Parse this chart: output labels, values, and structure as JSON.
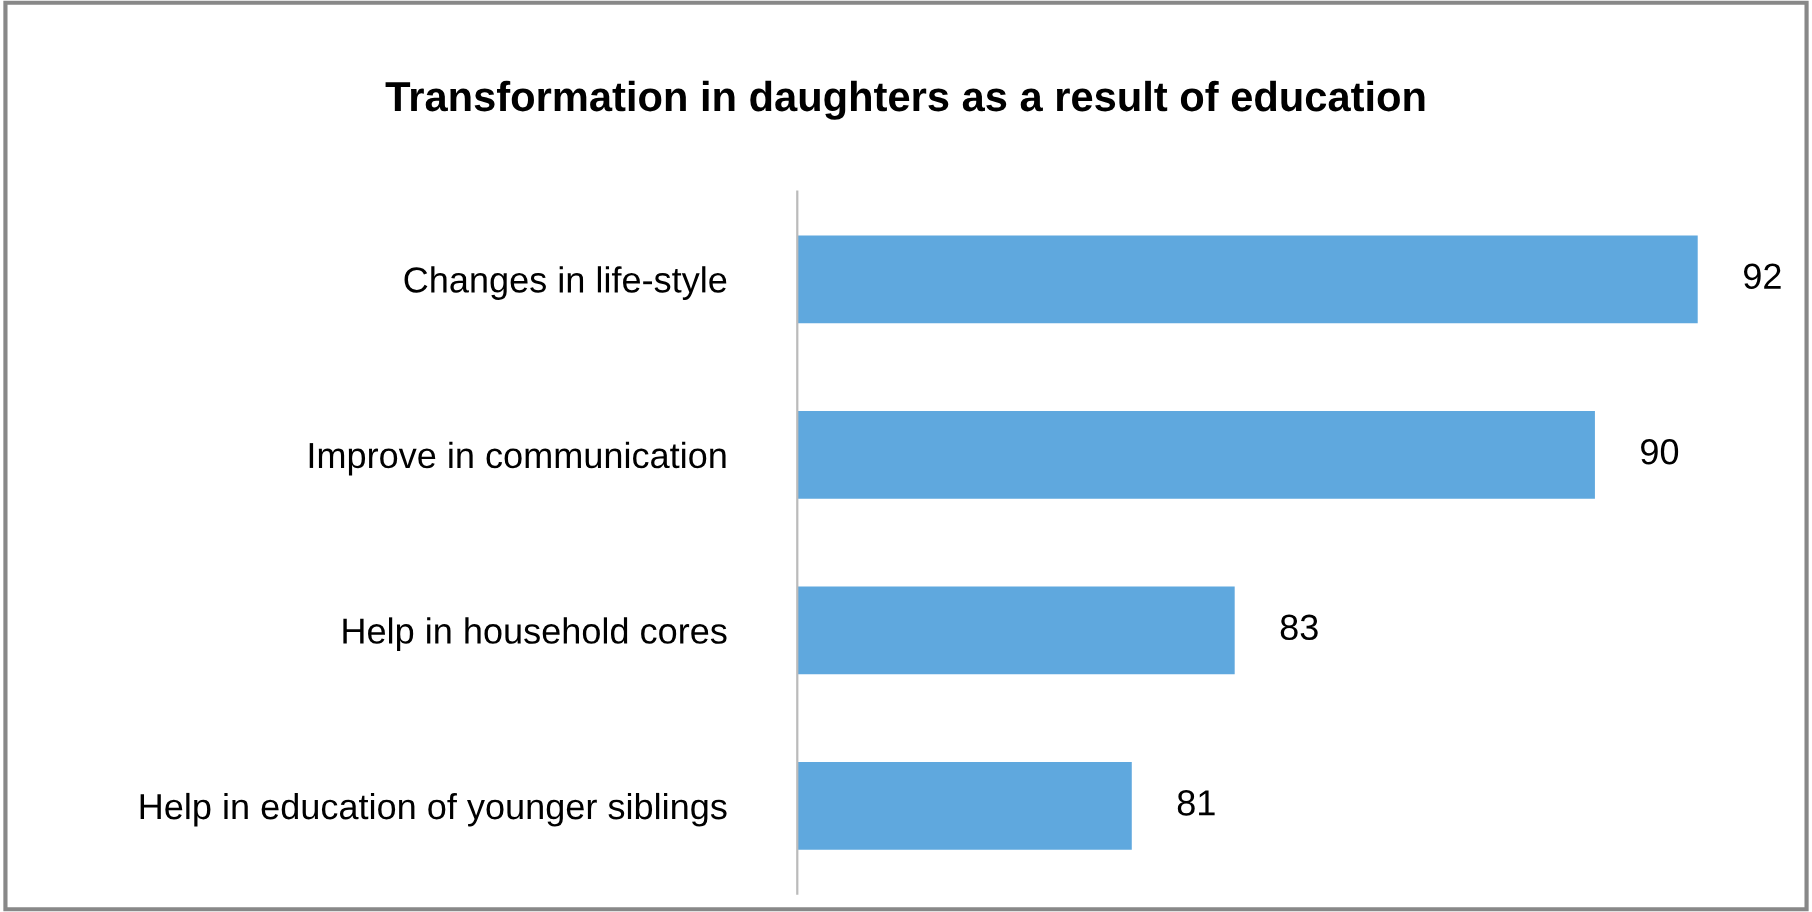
{
  "chart_data": {
    "type": "bar",
    "orientation": "horizontal",
    "title": "Transformation in daughters as a result of education",
    "categories": [
      "Changes in life-style",
      "Improve in communication",
      "Help in household cores",
      "Help in education of younger siblings"
    ],
    "values": [
      92,
      90,
      83,
      81
    ],
    "color": "#5fa8de",
    "xlim": [
      74.5,
      92
    ],
    "data_labels": true,
    "grid": false,
    "legend": false,
    "tick_labels": "y"
  }
}
